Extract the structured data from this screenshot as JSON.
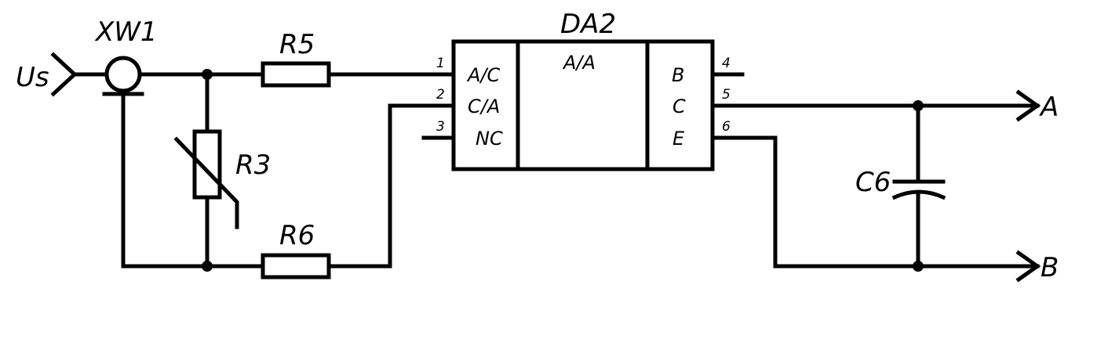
{
  "diagram": {
    "input_label": "Us",
    "connector": {
      "designator": "XW1"
    },
    "resistors": {
      "r5": "R5",
      "r6": "R6",
      "r3": "R3"
    },
    "capacitor": "C6",
    "chip": {
      "designator": "DA2",
      "center_label": "A/A",
      "left_pins": [
        {
          "num": "1",
          "name": "A/C"
        },
        {
          "num": "2",
          "name": "C/A"
        },
        {
          "num": "3",
          "name": "NC"
        }
      ],
      "right_pins": [
        {
          "num": "4",
          "name": "B"
        },
        {
          "num": "5",
          "name": "C"
        },
        {
          "num": "6",
          "name": "E"
        }
      ]
    },
    "outputs": {
      "a": "A",
      "b": "B"
    }
  }
}
